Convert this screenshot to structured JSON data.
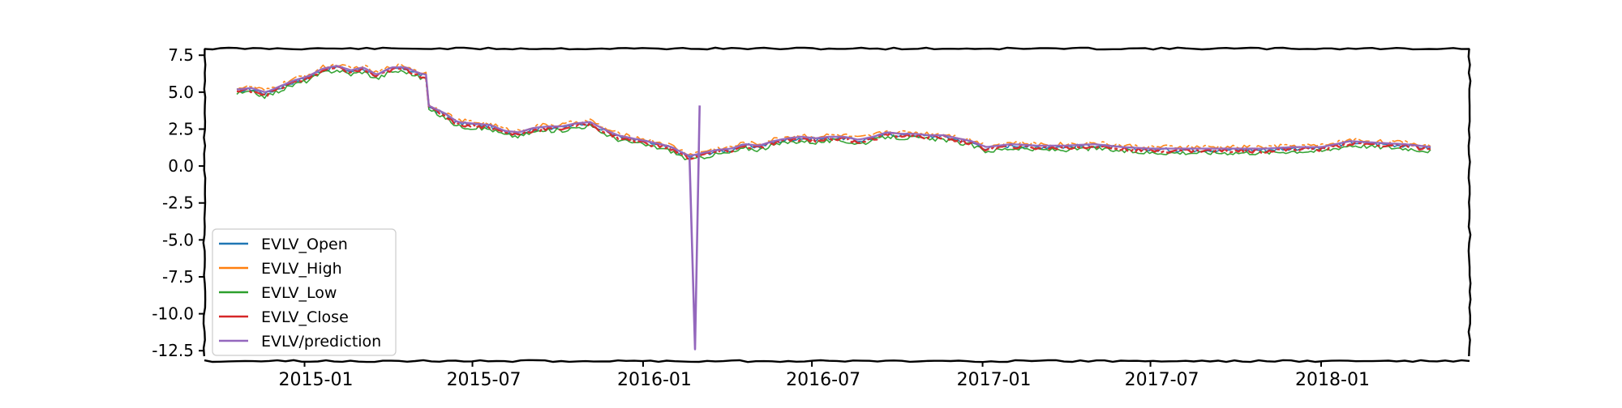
{
  "chart_data": {
    "type": "line",
    "title": "",
    "xlabel": "",
    "ylabel": "",
    "xlim": [
      "2014-09-15",
      "2018-06-10"
    ],
    "ylim": [
      -13.2,
      7.95
    ],
    "grid": false,
    "legend_position": "lower-left",
    "yticks": [
      7.5,
      5.0,
      2.5,
      0.0,
      -2.5,
      -5.0,
      -7.5,
      -10.0,
      -12.5
    ],
    "ytick_labels": [
      "7.5",
      "5.0",
      "2.5",
      "0.0",
      "-2.5",
      "-5.0",
      "-7.5",
      "-10.0",
      "-12.5"
    ],
    "xticks": [
      "2015-01-01",
      "2015-07-01",
      "2016-01-01",
      "2016-07-01",
      "2017-01-01",
      "2017-07-01",
      "2018-01-01"
    ],
    "xtick_labels": [
      "2015-01",
      "2015-07",
      "2016-01",
      "2016-07",
      "2017-01",
      "2017-07",
      "2018-01"
    ],
    "series": [
      {
        "name": "EVLV_Open",
        "color": "#1f77b4",
        "offset": 0.0
      },
      {
        "name": "EVLV_High",
        "color": "#ff7f0e",
        "offset": 0.18
      },
      {
        "name": "EVLV_Low",
        "color": "#2ca02c",
        "offset": -0.2
      },
      {
        "name": "EVLV_Close",
        "color": "#d62728",
        "offset": -0.06
      },
      {
        "name": "EVLV/prediction",
        "color": "#9467bd",
        "offset": 0.08
      }
    ],
    "base_curve": {
      "x": [
        "2014-10-20",
        "2014-11-05",
        "2014-11-20",
        "2014-12-05",
        "2014-12-20",
        "2015-01-05",
        "2015-01-20",
        "2015-02-05",
        "2015-02-20",
        "2015-03-05",
        "2015-03-20",
        "2015-04-05",
        "2015-04-20",
        "2015-05-05",
        "2015-05-12",
        "2015-05-15",
        "2015-06-01",
        "2015-06-15",
        "2015-07-01",
        "2015-07-20",
        "2015-08-05",
        "2015-08-20",
        "2015-09-05",
        "2015-09-20",
        "2015-10-05",
        "2015-10-20",
        "2015-11-05",
        "2015-11-20",
        "2015-12-05",
        "2015-12-20",
        "2016-01-05",
        "2016-01-20",
        "2016-02-01",
        "2016-02-10",
        "2016-02-20",
        "2016-03-05",
        "2016-03-20",
        "2016-04-05",
        "2016-04-20",
        "2016-05-05",
        "2016-05-20",
        "2016-06-05",
        "2016-06-20",
        "2016-07-05",
        "2016-07-20",
        "2016-08-05",
        "2016-08-20",
        "2016-09-05",
        "2016-09-20",
        "2016-10-05",
        "2016-10-20",
        "2016-11-05",
        "2016-11-20",
        "2016-12-05",
        "2016-12-20",
        "2017-01-05",
        "2017-02-01",
        "2017-03-01",
        "2017-04-01",
        "2017-05-01",
        "2017-06-01",
        "2017-07-01",
        "2017-08-01",
        "2017-09-01",
        "2017-10-01",
        "2017-11-01",
        "2017-12-01",
        "2018-01-01",
        "2018-02-01",
        "2018-03-01",
        "2018-04-01",
        "2018-05-01"
      ],
      "y": [
        5.1,
        5.2,
        4.9,
        5.3,
        5.7,
        6.0,
        6.5,
        6.7,
        6.4,
        6.6,
        6.1,
        6.6,
        6.6,
        6.2,
        6.1,
        4.0,
        3.5,
        2.9,
        2.8,
        2.7,
        2.3,
        2.2,
        2.5,
        2.6,
        2.6,
        2.8,
        2.9,
        2.4,
        2.0,
        1.8,
        1.6,
        1.4,
        1.2,
        0.9,
        0.6,
        0.8,
        1.0,
        1.1,
        1.4,
        1.3,
        1.6,
        1.8,
        1.9,
        1.8,
        1.9,
        1.9,
        1.7,
        1.9,
        2.2,
        2.1,
        2.1,
        2.0,
        2.0,
        1.8,
        1.6,
        1.2,
        1.4,
        1.3,
        1.3,
        1.4,
        1.2,
        1.1,
        1.1,
        1.1,
        1.1,
        1.1,
        1.2,
        1.2,
        1.6,
        1.5,
        1.4,
        1.2
      ]
    },
    "prediction_spike": {
      "x": [
        "2016-02-20",
        "2016-02-26",
        "2016-03-02"
      ],
      "y": [
        0.6,
        -12.4,
        4.1
      ]
    }
  }
}
